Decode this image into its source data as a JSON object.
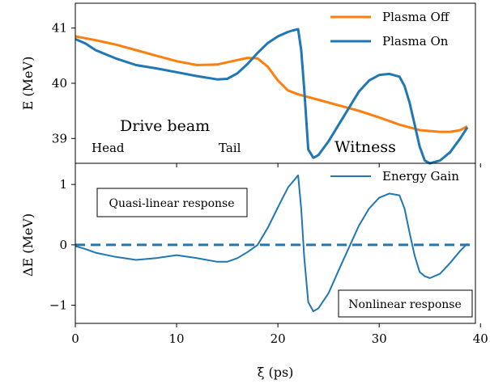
{
  "chart_data": [
    {
      "type": "line",
      "panel": "top",
      "xlabel": "",
      "ylabel": "E (MeV)",
      "xlim": [
        0,
        39.5
      ],
      "ylim": [
        38.55,
        41.45
      ],
      "yticks": [
        39,
        40,
        41
      ],
      "grid": false,
      "legend_placement": "top-right",
      "series": [
        {
          "name": "Plasma Off",
          "color": "#ff7f0e",
          "x": [
            0,
            2,
            4,
            6,
            8,
            10,
            12,
            14,
            16,
            17,
            18,
            19,
            20,
            21,
            22,
            23,
            24,
            26,
            28,
            30,
            32,
            34,
            36,
            37,
            38,
            38.7
          ],
          "y": [
            40.85,
            40.78,
            40.7,
            40.6,
            40.5,
            40.4,
            40.33,
            40.34,
            40.42,
            40.46,
            40.45,
            40.3,
            40.05,
            39.87,
            39.8,
            39.75,
            39.7,
            39.6,
            39.5,
            39.38,
            39.25,
            39.15,
            39.12,
            39.12,
            39.15,
            39.22
          ]
        },
        {
          "name": "Plasma On",
          "color": "#1f77b4",
          "x": [
            0,
            1,
            2,
            4,
            6,
            8,
            10,
            12,
            14,
            15,
            16,
            17,
            18,
            19,
            20,
            21,
            21.5,
            22,
            22.3,
            22.6,
            23,
            23.5,
            24,
            25,
            26,
            27,
            28,
            29,
            30,
            31,
            32,
            32.5,
            33,
            33.5,
            34,
            34.5,
            35,
            36,
            37,
            38,
            38.7
          ],
          "y": [
            40.8,
            40.72,
            40.6,
            40.45,
            40.33,
            40.27,
            40.2,
            40.13,
            40.07,
            40.08,
            40.18,
            40.35,
            40.55,
            40.73,
            40.85,
            40.93,
            40.96,
            40.98,
            40.6,
            39.9,
            38.8,
            38.65,
            38.7,
            38.95,
            39.25,
            39.55,
            39.85,
            40.05,
            40.15,
            40.17,
            40.12,
            39.95,
            39.65,
            39.25,
            38.85,
            38.6,
            38.55,
            38.6,
            38.75,
            39.0,
            39.2
          ]
        }
      ],
      "annotations": [
        "Drive beam",
        "Head",
        "Tail",
        "Witness"
      ]
    },
    {
      "type": "line",
      "panel": "bottom",
      "xlabel": "ξ (ps)",
      "ylabel": "ΔE (MeV)",
      "xlim": [
        0,
        39.5
      ],
      "ylim": [
        -1.3,
        1.35
      ],
      "xticks": [
        0,
        10,
        20,
        30,
        40
      ],
      "yticks": [
        -1,
        0,
        1
      ],
      "grid": false,
      "legend_placement": "top-right",
      "series": [
        {
          "name": "Energy Gain",
          "color": "#1f77b4",
          "x": [
            0,
            1,
            2,
            4,
            6,
            8,
            10,
            12,
            14,
            15,
            16,
            17,
            18,
            19,
            20,
            21,
            21.5,
            22,
            22.3,
            22.6,
            23,
            23.5,
            24,
            25,
            26,
            27,
            28,
            29,
            30,
            31,
            32,
            32.5,
            33,
            33.5,
            34,
            34.5,
            35,
            36,
            37,
            38,
            38.7
          ],
          "y": [
            -0.02,
            -0.07,
            -0.13,
            -0.2,
            -0.25,
            -0.22,
            -0.17,
            -0.22,
            -0.28,
            -0.28,
            -0.22,
            -0.12,
            0.0,
            0.28,
            0.62,
            0.95,
            1.05,
            1.15,
            0.6,
            -0.2,
            -0.95,
            -1.1,
            -1.05,
            -0.8,
            -0.42,
            -0.05,
            0.32,
            0.6,
            0.78,
            0.85,
            0.82,
            0.6,
            0.2,
            -0.18,
            -0.45,
            -0.52,
            -0.55,
            -0.48,
            -0.3,
            -0.1,
            0.02
          ]
        },
        {
          "name": "",
          "style": "dashed",
          "color": "#1f77b4",
          "x": [
            0,
            39.5
          ],
          "y": [
            0,
            0
          ]
        }
      ],
      "annotations": [
        "Quasi-linear response",
        "Nonlinear response"
      ]
    }
  ]
}
